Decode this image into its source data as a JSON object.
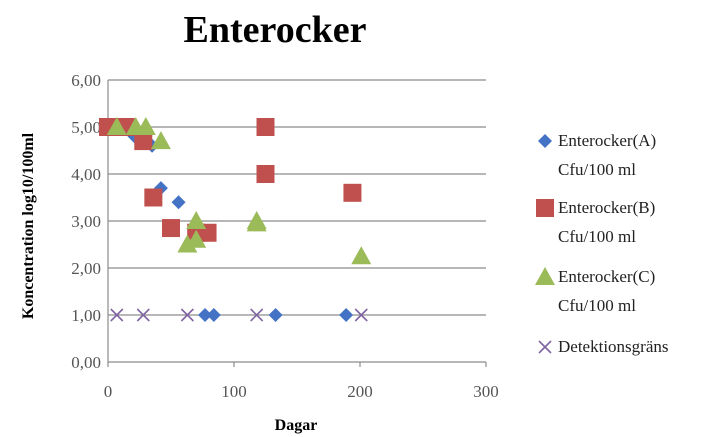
{
  "chart_data": {
    "type": "scatter",
    "title": "Enterocker",
    "xlabel": "Dagar",
    "ylabel": "Koncentration log10/100ml",
    "xlim": [
      0,
      300
    ],
    "ylim": [
      0,
      6
    ],
    "xticks": [
      "0",
      "100",
      "200",
      "300"
    ],
    "yticks": [
      "0,00",
      "1,00",
      "2,00",
      "3,00",
      "4,00",
      "5,00",
      "6,00"
    ],
    "grid": "horizontal",
    "legend_position": "right",
    "series": [
      {
        "name": "Enterocker(A) Cfu/100 ml",
        "legend_lines": [
          "Enterocker(A)",
          "Cfu/100 ml"
        ],
        "marker": "diamond",
        "color": "#4472C4",
        "points": [
          [
            0,
            5.0
          ],
          [
            7,
            5.0
          ],
          [
            21,
            4.8
          ],
          [
            28,
            4.75
          ],
          [
            35,
            4.6
          ],
          [
            42,
            3.7
          ],
          [
            56,
            3.4
          ],
          [
            77,
            1.0
          ],
          [
            84,
            1.0
          ],
          [
            133,
            1.0
          ],
          [
            189,
            1.0
          ]
        ]
      },
      {
        "name": "Enterocker(B) Cfu/100 ml",
        "legend_lines": [
          "Enterocker(B)",
          "Cfu/100 ml"
        ],
        "marker": "square",
        "color": "#C0504D",
        "points": [
          [
            0,
            5.0
          ],
          [
            7,
            5.0
          ],
          [
            14,
            5.0
          ],
          [
            28,
            4.7
          ],
          [
            36,
            3.5
          ],
          [
            50,
            2.85
          ],
          [
            70,
            2.75
          ],
          [
            79,
            2.75
          ],
          [
            125,
            5.0
          ],
          [
            125,
            4.0
          ],
          [
            194,
            3.6
          ]
        ]
      },
      {
        "name": "Enterocker(C) Cfu/100 ml",
        "legend_lines": [
          "Enterocker(C)",
          "Cfu/100 ml"
        ],
        "marker": "triangle",
        "color": "#9BBB59",
        "points": [
          [
            7,
            5.0
          ],
          [
            22,
            5.0
          ],
          [
            30,
            5.0
          ],
          [
            42,
            4.7
          ],
          [
            63,
            2.5
          ],
          [
            70,
            2.6
          ],
          [
            70,
            3.0
          ],
          [
            118,
            3.0
          ],
          [
            118,
            2.95
          ],
          [
            201,
            2.25
          ]
        ]
      },
      {
        "name": "Detektionsgräns",
        "legend_lines": [
          "Detektionsgräns"
        ],
        "marker": "x",
        "color": "#8064A2",
        "points": [
          [
            7,
            1.0
          ],
          [
            28,
            1.0
          ],
          [
            63,
            1.0
          ],
          [
            118,
            1.0
          ],
          [
            201,
            1.0
          ]
        ]
      }
    ]
  }
}
